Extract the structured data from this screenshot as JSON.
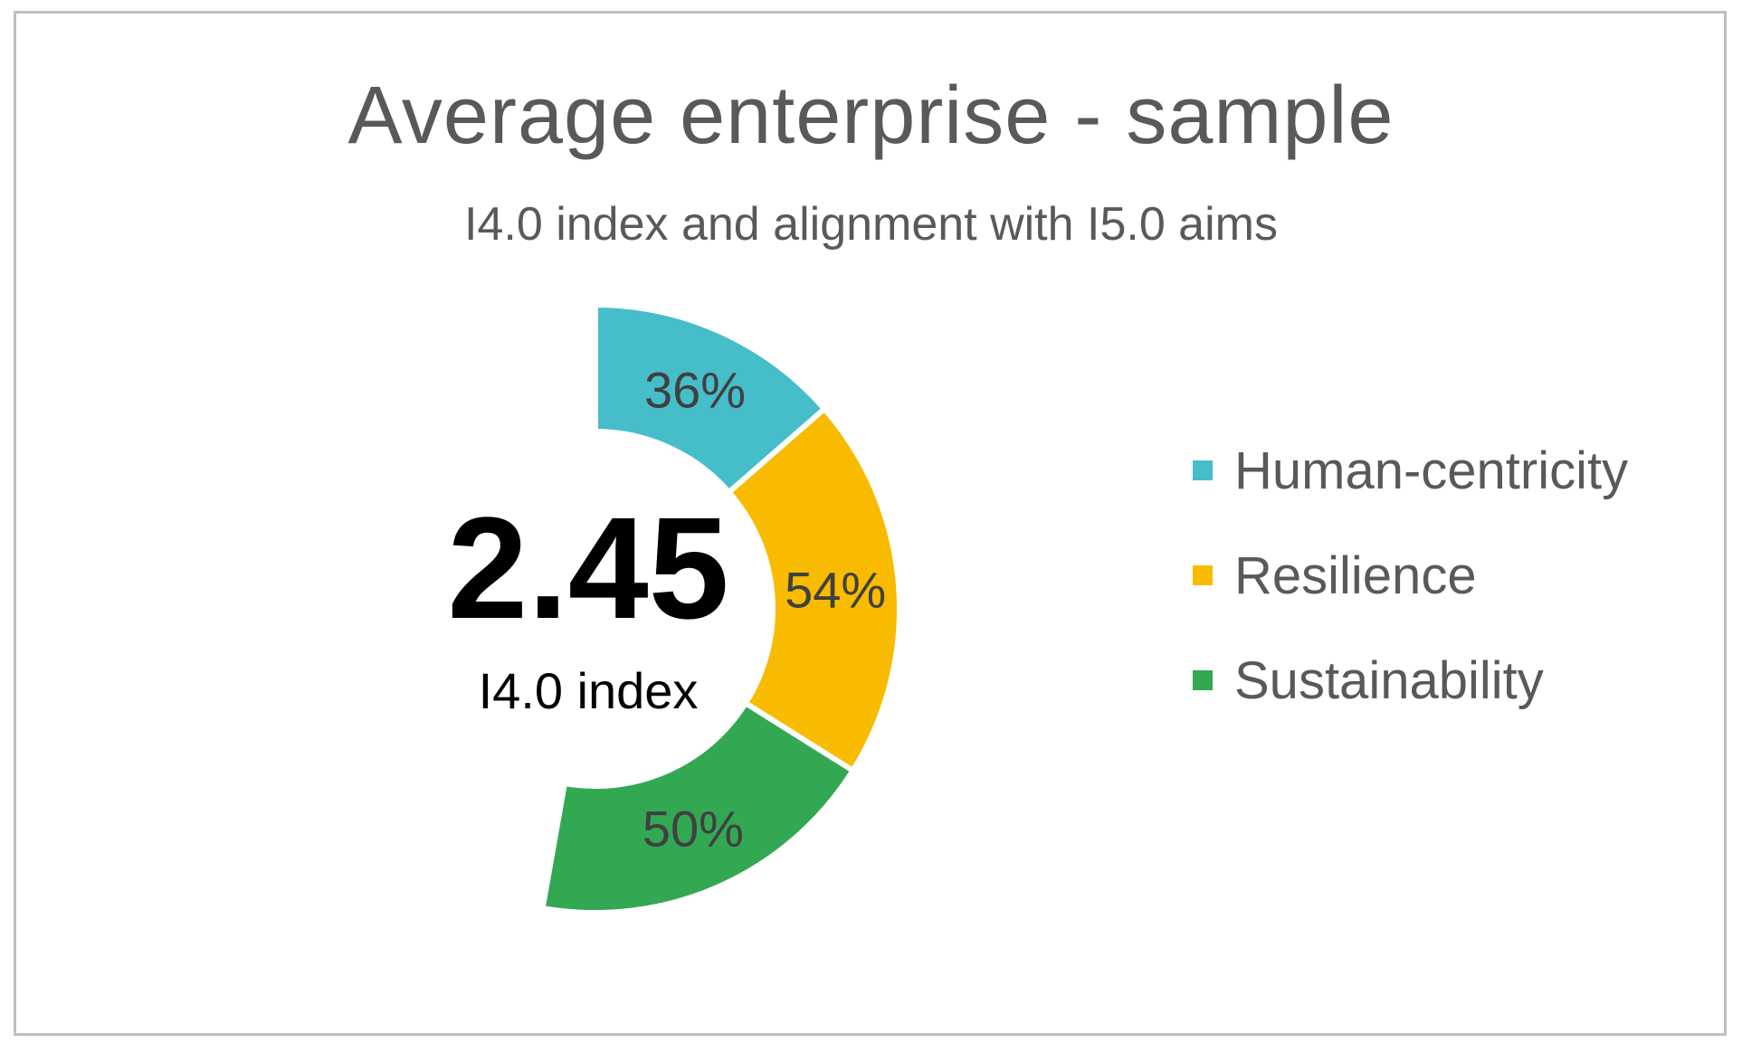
{
  "chart_data": {
    "type": "donut",
    "title": "Average enterprise - sample",
    "subtitle": "I4.0 index and alignment with I5.0 aims",
    "center_value": "2.45",
    "center_label": "I4.0 index",
    "series": [
      {
        "name": "Human-centricity",
        "value": 36,
        "label": "36%",
        "color": "#45bec9"
      },
      {
        "name": "Resilience",
        "value": 54,
        "label": "54%",
        "color": "#f8bb00"
      },
      {
        "name": "Sustainability",
        "value": 50,
        "label": "50%",
        "color": "#33a853"
      }
    ],
    "legend_position": "right"
  }
}
